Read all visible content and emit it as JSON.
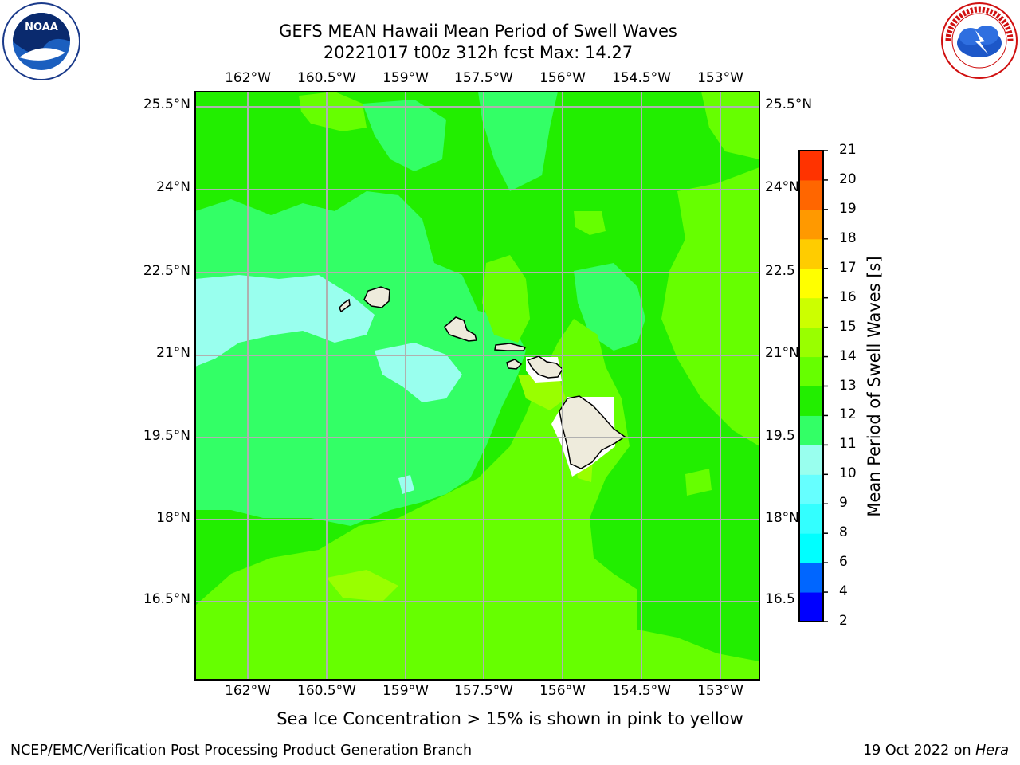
{
  "title": "GEFS MEAN Hawaii Mean Period of Swell Waves",
  "subtitle": "20221017 t00z 312h fcst   Max: 14.27",
  "caption": "Sea Ice Concentration > 15% is shown in pink to yellow",
  "footer_left": "NCEP/EMC/Verification Post Processing Product Generation Branch",
  "footer_right_prefix": "19 Oct 2022 on ",
  "footer_right_machine": "Hera",
  "logos": {
    "left": "noaa-logo",
    "right": "nws-logo"
  },
  "map": {
    "lon_ticks": [
      "162°W",
      "160.5°W",
      "159°W",
      "157.5°W",
      "156°W",
      "154.5°W",
      "153°W"
    ],
    "lat_ticks_left": [
      "25.5°N",
      "24°N",
      "22.5°N",
      "21°N",
      "19.5°N",
      "18°N",
      "16.5°N"
    ],
    "lat_ticks_right": [
      "25.5°N",
      "24°N",
      "22.5",
      "21°N",
      "19.5",
      "18°N",
      "16.5"
    ],
    "grid": true
  },
  "colorbar": {
    "label": "Mean Period of Swell Waves [s]",
    "levels": [
      "2",
      "4",
      "6",
      "8",
      "9",
      "10",
      "11",
      "12",
      "13",
      "14",
      "15",
      "16",
      "17",
      "18",
      "19",
      "20",
      "21"
    ],
    "colors": [
      "#0000ff",
      "#0066ff",
      "#00ffff",
      "#33ffff",
      "#66ffff",
      "#99ffee",
      "#33ff66",
      "#22ee00",
      "#66ff00",
      "#99ff00",
      "#ccff00",
      "#ffff00",
      "#ffcc00",
      "#ff9900",
      "#ff6600",
      "#ff3300",
      "#ff0000"
    ]
  }
}
